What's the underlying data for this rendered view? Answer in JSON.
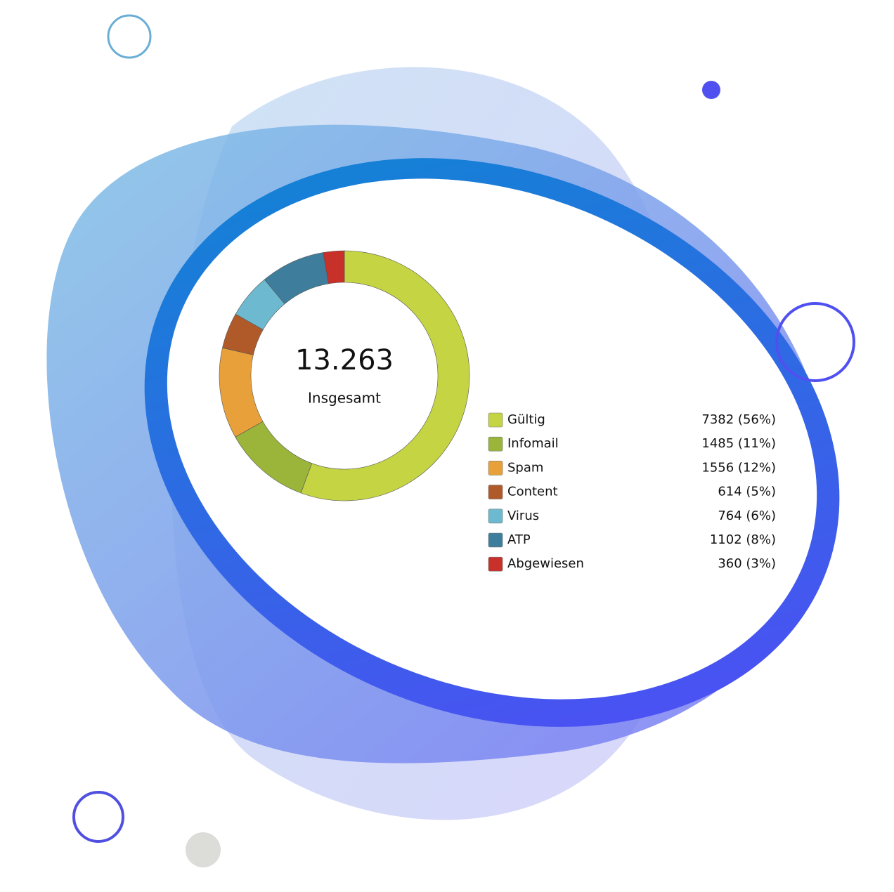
{
  "chart_data": {
    "type": "donut",
    "center_value": "13.263",
    "center_label": "Insgesamt",
    "categories": [
      "Gültig",
      "Infomail",
      "Spam",
      "Content",
      "Virus",
      "ATP",
      "Abgewiesen"
    ],
    "values": [
      7382,
      1485,
      1556,
      614,
      764,
      1102,
      360
    ],
    "value_labels": [
      "7382 (56%)",
      "1485 (11%)",
      "1556 (12%)",
      "614 (5%)",
      "764 (6%)",
      "1102 (8%)",
      "360 (3%)"
    ],
    "colors": [
      "#c5d443",
      "#9bb43a",
      "#e8a03a",
      "#b05a2a",
      "#6dbad0",
      "#3e7e9c",
      "#c8302a"
    ]
  }
}
